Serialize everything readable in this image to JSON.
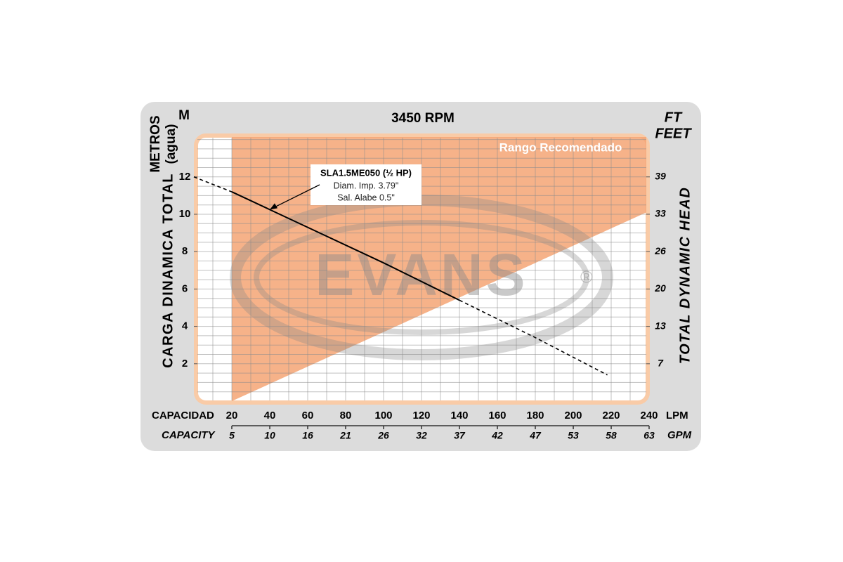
{
  "chart_data": {
    "type": "line",
    "title": "3450 RPM",
    "y_unit": "M",
    "y_label": "METROS",
    "y_label2": "(agua)",
    "y_axis_title": "CARGA DINAMICA TOTAL",
    "y2_unit": "FT",
    "y2_label": "FEET",
    "y2_axis_title": "TOTAL DYNAMIC HEAD",
    "x_label": "CAPACIDAD",
    "x_unit": "LPM",
    "x2_label": "CAPACITY",
    "x2_unit": "GPM",
    "xlim": [
      0,
      240
    ],
    "xticks": [
      20,
      40,
      60,
      80,
      100,
      120,
      140,
      160,
      180,
      200,
      220,
      240
    ],
    "x2lim": [
      0,
      63.4
    ],
    "x2ticks": [
      {
        "value": 5.28,
        "label": "5"
      },
      {
        "value": 10.57,
        "label": "10"
      },
      {
        "value": 15.85,
        "label": "16"
      },
      {
        "value": 21.13,
        "label": "21"
      },
      {
        "value": 26.42,
        "label": "26"
      },
      {
        "value": 31.7,
        "label": "32"
      },
      {
        "value": 36.99,
        "label": "37"
      },
      {
        "value": 42.27,
        "label": "42"
      },
      {
        "value": 47.55,
        "label": "47"
      },
      {
        "value": 52.84,
        "label": "53"
      },
      {
        "value": 58.12,
        "label": "58"
      },
      {
        "value": 63.4,
        "label": "63"
      }
    ],
    "ylim": [
      0,
      14
    ],
    "yticks": [
      2,
      4,
      6,
      8,
      10,
      12
    ],
    "y2lim": [
      0,
      45.93
    ],
    "y2ticks": [
      {
        "value": 6.56,
        "label": "7"
      },
      {
        "value": 13.12,
        "label": "13"
      },
      {
        "value": 19.69,
        "label": "20"
      },
      {
        "value": 26.25,
        "label": "26"
      },
      {
        "value": 32.81,
        "label": "33"
      },
      {
        "value": 39.37,
        "label": "39"
      }
    ],
    "grid": true,
    "grid_step_x": 10,
    "grid_step_y": 0.5,
    "recommended_range": {
      "label": "Rango Recomendado",
      "x": [
        20,
        240
      ],
      "lower": [
        0,
        10.1
      ],
      "color": "#f4a474"
    },
    "watermark": "EVANS",
    "watermark_mark": "®",
    "series": [
      {
        "name": "SLA1.5ME050 (½ HP)",
        "color": "#000000",
        "dashed": false,
        "x": [
          20,
          40,
          60,
          100,
          140
        ],
        "values": [
          11.2,
          10.25,
          9.3,
          7.4,
          5.4
        ]
      },
      {
        "color": "#000000",
        "dashed": true,
        "x": [
          0,
          20
        ],
        "values": [
          12,
          11.2
        ]
      },
      {
        "color": "#000000",
        "dashed": true,
        "x": [
          140,
          180,
          218
        ],
        "values": [
          5.4,
          3.4,
          1.4
        ]
      }
    ],
    "annotation": {
      "lines": [
        "Diam. Imp.  3.79\"",
        "Sal. Alabe 0.5\""
      ]
    }
  }
}
